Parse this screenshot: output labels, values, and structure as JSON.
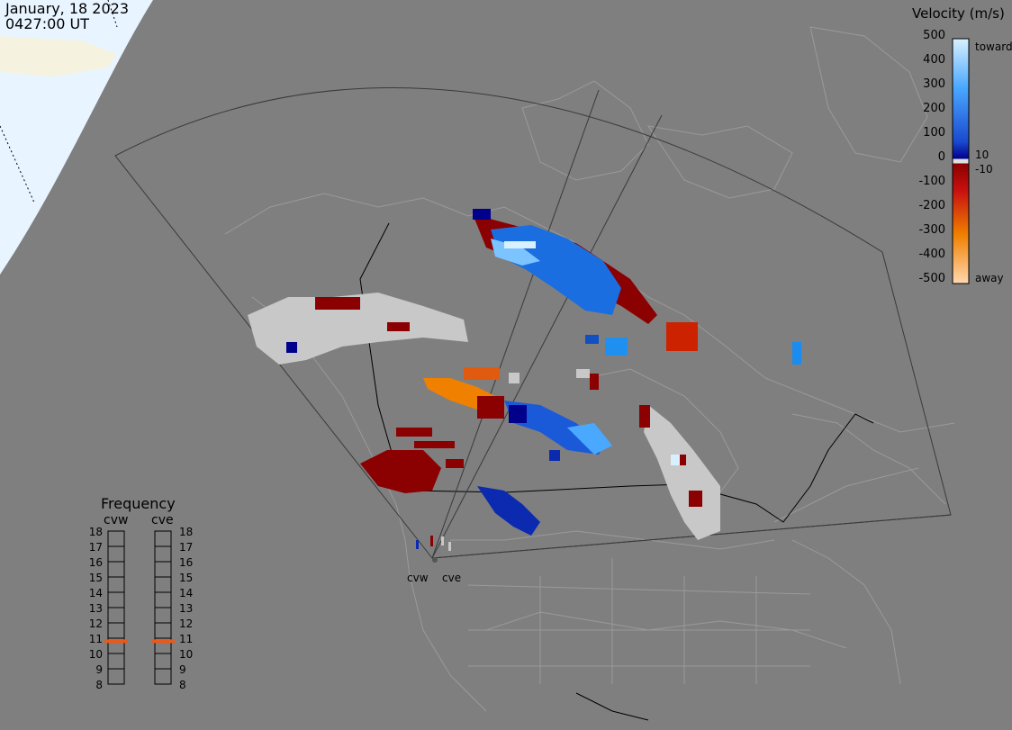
{
  "header": {
    "date": "January, 18 2023",
    "time": "0427:00 UT"
  },
  "colorbar": {
    "title": "Velocity (m/s)",
    "ticks": [
      "500",
      "400",
      "300",
      "200",
      "100",
      "0",
      "-100",
      "-200",
      "-300",
      "-400",
      "-500"
    ],
    "toward_label": "toward",
    "away_label": "away",
    "pos_threshold": "10",
    "neg_threshold": "-10",
    "colors": {
      "toward_light": "#d8f0ff",
      "toward_mid": "#1a8cf0",
      "toward_dark": "#00008b",
      "away_dark": "#8b0000",
      "away_mid": "#f08000",
      "away_light": "#ffd8b0",
      "ground_scatter": "#c8c8c8"
    }
  },
  "frequency": {
    "title": "Frequency",
    "radars": [
      {
        "code": "cvw",
        "frequency_mhz": 10.8
      },
      {
        "code": "cve",
        "frequency_mhz": 10.8
      }
    ],
    "scale": [
      "18",
      "17",
      "16",
      "15",
      "14",
      "13",
      "12",
      "11",
      "10",
      "9",
      "8"
    ],
    "marker_color": "#e85a1a"
  },
  "map": {
    "radar_labels": [
      "cvw",
      "cve"
    ],
    "background": "#7f7f7f",
    "day_side_color": "#e8f4ff",
    "ice_color": "#f5f3e0"
  }
}
